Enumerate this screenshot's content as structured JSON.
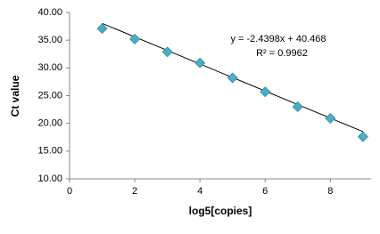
{
  "chart_data": {
    "type": "scatter",
    "x_label": "log5[copies]",
    "y_label": "Ct value",
    "series": [
      {
        "name": "Ct",
        "color": "#4bacc6",
        "x": [
          1,
          2,
          3,
          4,
          5,
          6,
          7,
          8,
          9
        ],
        "values": [
          37.1,
          35.2,
          32.9,
          30.9,
          28.2,
          25.7,
          23.0,
          20.9,
          17.6
        ]
      }
    ],
    "trendline": {
      "equation": "y = -2.4398x + 40.468",
      "slope": -2.4398,
      "intercept": 40.468,
      "r2": "R² = 0.9962",
      "color": "#000000"
    },
    "xlim": [
      0,
      9.25
    ],
    "xticks": [
      0,
      2,
      4,
      6,
      8
    ],
    "ylim": [
      10,
      40
    ],
    "yticks": [
      {
        "value": 10,
        "label": "10.00"
      },
      {
        "value": 15,
        "label": "15.00"
      },
      {
        "value": 20,
        "label": "20.00"
      },
      {
        "value": 25,
        "label": "25.00"
      },
      {
        "value": 30,
        "label": "30.00"
      },
      {
        "value": 35,
        "label": "35.00"
      },
      {
        "value": 40,
        "label": "40.00"
      }
    ],
    "grid": false
  }
}
